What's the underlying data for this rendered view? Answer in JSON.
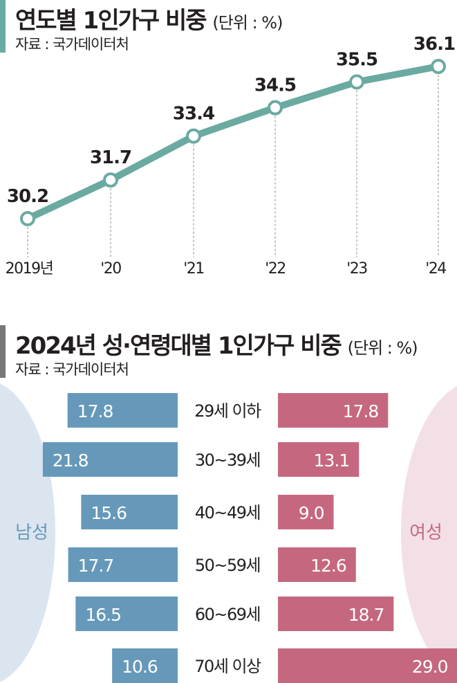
{
  "chart_data": [
    {
      "type": "line",
      "title": "연도별 1인가구 비중",
      "unit": "(단위 : %)",
      "source": "자료 : 국가데이터처",
      "categories": [
        "2019년",
        "'20",
        "'21",
        "'22",
        "'23",
        "'24"
      ],
      "values": [
        30.2,
        31.7,
        33.4,
        34.5,
        35.5,
        36.1
      ],
      "data_labels": [
        "30.2",
        "31.7",
        "33.4",
        "34.5",
        "35.5",
        "36.1"
      ],
      "ylim": [
        30.2,
        36.1
      ],
      "grid": false,
      "colors": {
        "line": "#6aaaa1",
        "marker_fill": "#ffffff",
        "dash": "#888888",
        "accent": "#6aaaa1"
      }
    },
    {
      "type": "bar",
      "orientation": "horizontal-butterfly",
      "title": "2024년 성·연령대별 1인가구 비중",
      "unit": "(단위 : %)",
      "source": "자료 : 국가데이터처",
      "categories": [
        "29세 이하",
        "30~39세",
        "40~49세",
        "50~59세",
        "60~69세",
        "70세 이상"
      ],
      "series": [
        {
          "name": "남성",
          "values": [
            17.8,
            21.8,
            15.6,
            17.7,
            16.5,
            10.6
          ],
          "labels": [
            "17.8",
            "21.8",
            "15.6",
            "17.7",
            "16.5",
            "10.6"
          ],
          "color": "#6699b9"
        },
        {
          "name": "여성",
          "values": [
            17.8,
            13.1,
            9.0,
            12.6,
            18.7,
            29.0
          ],
          "labels": [
            "17.8",
            "13.1",
            "9.0",
            "12.6",
            "18.7",
            "29.0"
          ],
          "color": "#c5687f"
        }
      ],
      "colors": {
        "male_bg": "#dbe5f0",
        "female_bg": "#f3e0e7",
        "male_text": "#6699b9",
        "female_text": "#c5687f",
        "accent": "#777777"
      }
    }
  ]
}
